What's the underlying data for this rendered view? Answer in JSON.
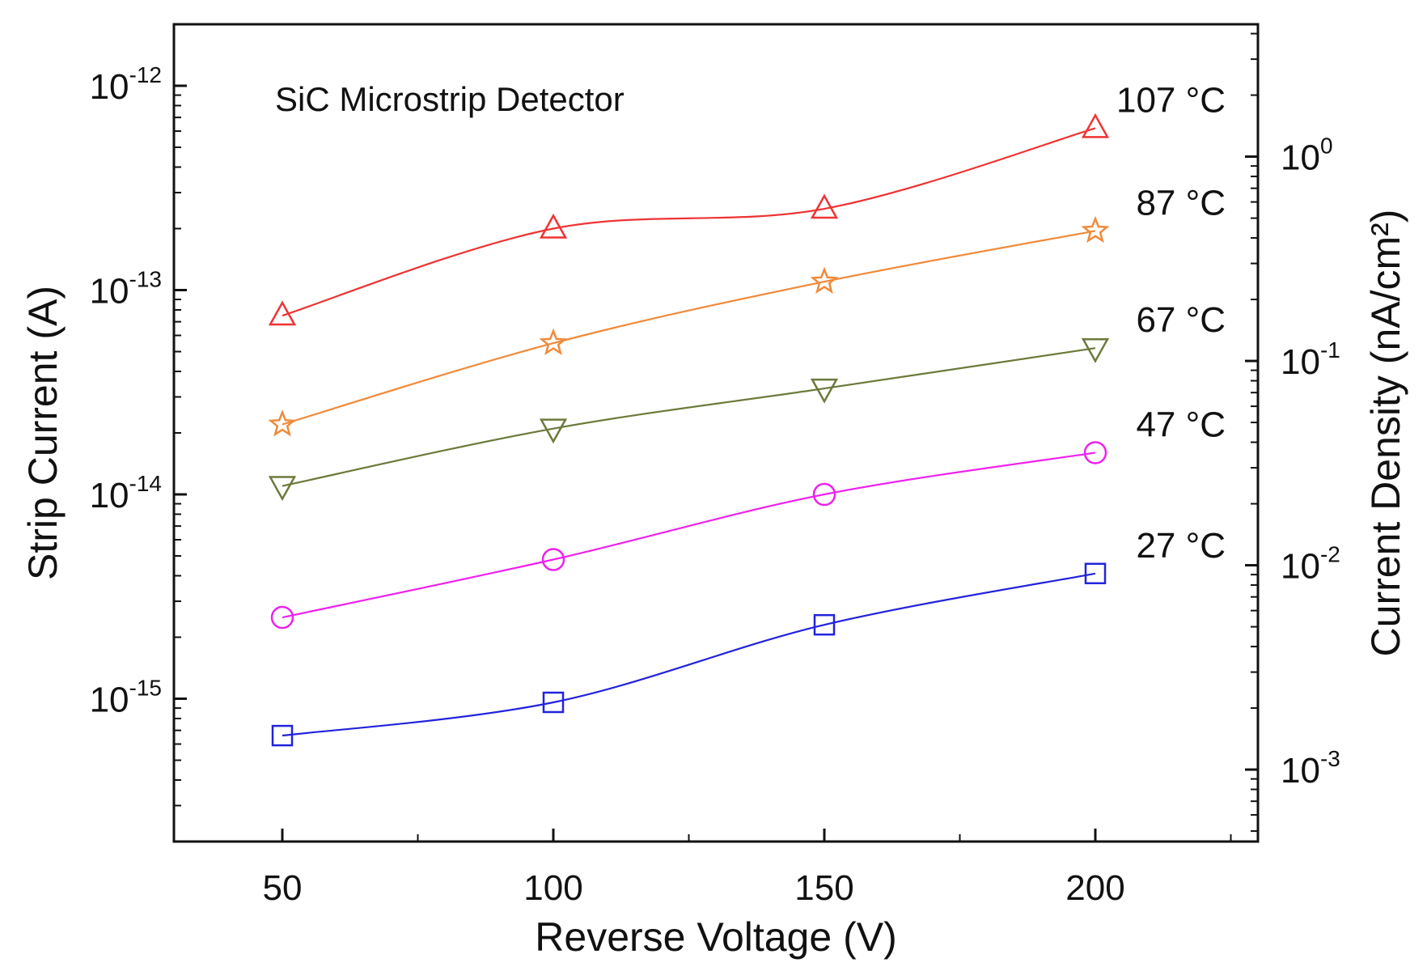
{
  "chart_data": {
    "type": "line",
    "title": "",
    "annotation": "SiC Microstrip Detector",
    "xlabel": "Reverse Voltage (V)",
    "ylabel": "Strip Current (A)",
    "ylabel_right": "Current Density (nA/cm²)",
    "xlim": [
      30,
      230
    ],
    "ylim": [
      2e-16,
      2e-12
    ],
    "yscale": "log",
    "x_ticks": [
      {
        "value": 50,
        "label": "50"
      },
      {
        "value": 100,
        "label": "100"
      },
      {
        "value": 150,
        "label": "150"
      },
      {
        "value": 200,
        "label": "200"
      }
    ],
    "y_ticks": [
      {
        "value": 1e-12,
        "mantissa": "10",
        "exponent": "-12"
      },
      {
        "value": 1e-13,
        "mantissa": "10",
        "exponent": "-13"
      },
      {
        "value": 1e-14,
        "mantissa": "10",
        "exponent": "-14"
      },
      {
        "value": 1e-15,
        "mantissa": "10",
        "exponent": "-15"
      }
    ],
    "y2_ticks": [
      {
        "value": 4.5e-13,
        "mantissa": "10",
        "exponent": "0"
      },
      {
        "value": 4.5e-14,
        "mantissa": "10",
        "exponent": "-1"
      },
      {
        "value": 4.5e-15,
        "mantissa": "10",
        "exponent": "-2"
      },
      {
        "value": 4.5e-16,
        "mantissa": "10",
        "exponent": "-3"
      }
    ],
    "x": [
      50,
      100,
      150,
      200
    ],
    "series": [
      {
        "name": "107 °C",
        "label": "107 °C",
        "color": "#ee3333",
        "marker": "triangle-up",
        "values": [
          7.5e-14,
          2e-13,
          2.5e-13,
          6.2e-13
        ]
      },
      {
        "name": "87 °C",
        "label": "87 °C",
        "color": "#f08a3a",
        "marker": "star",
        "values": [
          2.2e-14,
          5.5e-14,
          1.1e-13,
          1.95e-13
        ]
      },
      {
        "name": "67 °C",
        "label": "67 °C",
        "color": "#6b7a3a",
        "marker": "triangle-down",
        "values": [
          1.1e-14,
          2.1e-14,
          3.3e-14,
          5.2e-14
        ]
      },
      {
        "name": "47 °C",
        "label": "47 °C",
        "color": "#ee22ee",
        "marker": "circle",
        "values": [
          2.5e-15,
          4.8e-15,
          1e-14,
          1.6e-14
        ]
      },
      {
        "name": "27 °C",
        "label": "27 °C",
        "color": "#2222dd",
        "marker": "square",
        "values": [
          6.6e-16,
          9.6e-16,
          2.3e-15,
          4.1e-15
        ]
      }
    ]
  }
}
